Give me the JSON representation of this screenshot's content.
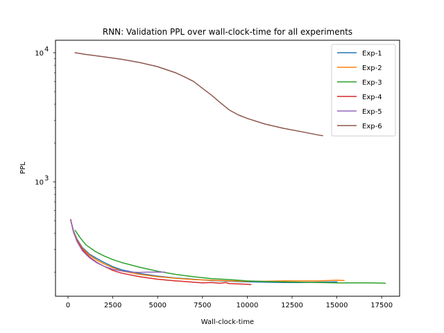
{
  "chart_data": {
    "type": "line",
    "title": "RNN: Validation PPL over wall-clock-time for all experiments",
    "xlabel": "Wall-clock-time",
    "ylabel": "PPL",
    "xlim": [
      -700,
      18500
    ],
    "ylim": [
      130,
      12500
    ],
    "yscale": "log",
    "grid": false,
    "legend_position": "top-right",
    "x_ticks": [
      0,
      2500,
      5000,
      7500,
      10000,
      12500,
      15000,
      17500
    ],
    "x_tick_labels": [
      "0",
      "2500",
      "5000",
      "7500",
      "10000",
      "12500",
      "15000",
      "17500"
    ],
    "y_ticks": [
      1000,
      10000
    ],
    "y_tick_labels": [
      {
        "base": "10",
        "exp": "3"
      },
      {
        "base": "10",
        "exp": "4"
      }
    ],
    "series": [
      {
        "name": "Exp-1",
        "color": "#1f77b4",
        "x": [
          150,
          300,
          500,
          800,
          1200,
          1600,
          2000,
          2500,
          3000,
          4000,
          5000,
          6000,
          7000,
          8000,
          9000,
          10000,
          11000,
          12000,
          13000,
          14000,
          15000
        ],
        "y": [
          505,
          420,
          360,
          310,
          275,
          255,
          238,
          220,
          208,
          195,
          186,
          180,
          176,
          172,
          170,
          168,
          167,
          166,
          166,
          167,
          168
        ]
      },
      {
        "name": "Exp-2",
        "color": "#ff7f0e",
        "x": [
          150,
          300,
          500,
          800,
          1200,
          1600,
          2000,
          2500,
          3000,
          4000,
          5000,
          6000,
          7000,
          8000,
          9000,
          10000,
          11000,
          12000,
          13000,
          14000,
          14500,
          15000,
          15400
        ],
        "y": [
          500,
          415,
          355,
          305,
          270,
          248,
          232,
          216,
          204,
          192,
          184,
          179,
          175,
          173,
          171,
          170,
          170,
          171,
          171,
          171,
          172,
          173,
          172
        ]
      },
      {
        "name": "Exp-3",
        "color": "#2ca02c",
        "x": [
          400,
          700,
          1000,
          1500,
          2000,
          2500,
          3000,
          4000,
          5000,
          6000,
          7000,
          8000,
          9000,
          10000,
          11000,
          12000,
          13000,
          14000,
          15000,
          16000,
          17000,
          17700
        ],
        "y": [
          420,
          365,
          325,
          290,
          267,
          250,
          237,
          218,
          203,
          192,
          184,
          178,
          175,
          171,
          169,
          168,
          167,
          166,
          165,
          165,
          165,
          164
        ]
      },
      {
        "name": "Exp-4",
        "color": "#d62728",
        "x": [
          150,
          300,
          500,
          800,
          1200,
          1600,
          2000,
          2500,
          3000,
          4000,
          5000,
          6000,
          7000,
          7500,
          8000,
          8500,
          8800,
          9000,
          9500,
          10000,
          10200
        ],
        "y": [
          510,
          410,
          350,
          300,
          262,
          238,
          222,
          206,
          196,
          184,
          176,
          171,
          167,
          165,
          166,
          164,
          166,
          163,
          162,
          161,
          160
        ]
      },
      {
        "name": "Exp-5",
        "color": "#9467bd",
        "x": [
          150,
          300,
          500,
          800,
          1200,
          1600,
          2000,
          2500,
          3000,
          3500,
          4000,
          4500,
          5000,
          5400
        ],
        "y": [
          505,
          410,
          345,
          293,
          258,
          236,
          222,
          210,
          204,
          200,
          199,
          200,
          200,
          200
        ]
      },
      {
        "name": "Exp-6",
        "color": "#8c564b",
        "x": [
          400,
          1000,
          2000,
          3000,
          4000,
          5000,
          6000,
          6500,
          7000,
          7500,
          8000,
          8500,
          9000,
          9500,
          10000,
          11000,
          12000,
          13000,
          14000,
          14200
        ],
        "y": [
          10000,
          9700,
          9300,
          8900,
          8400,
          7800,
          7000,
          6500,
          6000,
          5300,
          4700,
          4100,
          3600,
          3300,
          3100,
          2800,
          2600,
          2450,
          2300,
          2280
        ]
      }
    ]
  }
}
